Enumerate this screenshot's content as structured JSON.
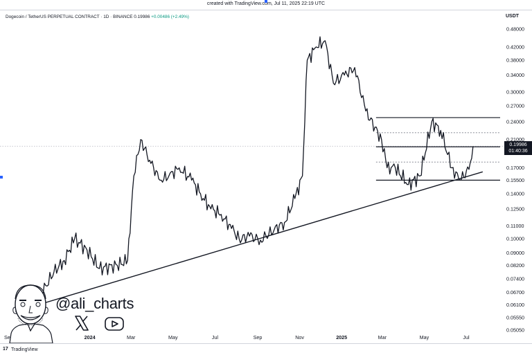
{
  "header": {
    "created": "created with TradingView.com, Jul 11, 2025 22:19 UTC",
    "symbol": "Dogecoin / TetherUS PERPETUAL CONTRACT · 1D · BINANCE",
    "price": "0.19986",
    "change": "+0.00486 (+2.49%)",
    "currency": "USDT"
  },
  "price_tag": {
    "price": "0.19986",
    "countdown": "01:40:36"
  },
  "branding": {
    "handle": "@ali_charts",
    "tv_label": "TradingView",
    "tv_logo": "17"
  },
  "icons": [
    "x-logo-icon",
    "youtube-icon",
    "tradingview-logo-icon",
    "avatar-caricature"
  ],
  "chart_data": {
    "type": "line",
    "title": "Dogecoin / TetherUS PERPETUAL CONTRACT · 1D · BINANCE",
    "xlabel": "",
    "ylabel": "USDT",
    "log_scale": true,
    "grid": false,
    "y_ticks": [
      "0.48000",
      "0.42000",
      "0.38000",
      "0.34000",
      "0.30000",
      "0.27000",
      "0.24000",
      "0.21000",
      "0.19000",
      "0.17000",
      "0.15500",
      "0.14000",
      "0.12500",
      "0.11000",
      "0.10000",
      "0.09000",
      "0.08200",
      "0.07400",
      "0.06700",
      "0.06100",
      "0.05550",
      "0.05050"
    ],
    "x_ticks": [
      "Nov",
      "2024",
      "Mar",
      "May",
      "Jul",
      "Sep",
      "Nov",
      "2025",
      "Mar",
      "May",
      "Jul"
    ],
    "x_ticks_visible": [
      "Sep",
      "ov",
      "2024",
      "Mar",
      "May",
      "Jul",
      "Sep",
      "Nov",
      "2025",
      "Mar",
      "May",
      "Jul"
    ],
    "series": [
      {
        "x": [
          "2023-09-15",
          "2023-10-15",
          "2023-11-10",
          "2023-11-25",
          "2023-12-10",
          "2023-12-28",
          "2024-01-15",
          "2024-02-10",
          "2024-02-25",
          "2024-03-05",
          "2024-03-15",
          "2024-03-28",
          "2024-04-12",
          "2024-04-25",
          "2024-05-10",
          "2024-05-28",
          "2024-06-10",
          "2024-06-25",
          "2024-07-10",
          "2024-07-25",
          "2024-08-05",
          "2024-08-20",
          "2024-09-05",
          "2024-09-25",
          "2024-10-10",
          "2024-10-25",
          "2024-11-05",
          "2024-11-12",
          "2024-11-25",
          "2024-12-08",
          "2024-12-20",
          "2025-01-05",
          "2025-01-20",
          "2025-02-05",
          "2025-02-28",
          "2025-03-08",
          "2025-03-20",
          "2025-04-08",
          "2025-04-25",
          "2025-05-12",
          "2025-05-25",
          "2025-06-10",
          "2025-06-22",
          "2025-07-05",
          "2025-07-11"
        ],
        "values": [
          0.06,
          0.062,
          0.078,
          0.085,
          0.1,
          0.092,
          0.08,
          0.082,
          0.085,
          0.16,
          0.21,
          0.18,
          0.155,
          0.16,
          0.17,
          0.155,
          0.14,
          0.125,
          0.12,
          0.108,
          0.1,
          0.102,
          0.099,
          0.107,
          0.113,
          0.135,
          0.16,
          0.38,
          0.42,
          0.44,
          0.32,
          0.34,
          0.36,
          0.26,
          0.21,
          0.17,
          0.17,
          0.15,
          0.16,
          0.24,
          0.225,
          0.17,
          0.155,
          0.168,
          0.19986
        ]
      }
    ],
    "annotations": {
      "horizontal_lines": [
        0.2475,
        0.199,
        0.155
      ],
      "dotted_lines": [
        0.221,
        0.1775
      ],
      "current_price": 0.19986,
      "trendline": {
        "from": [
          "2023-09-15",
          0.058
        ],
        "to": [
          "2025-07-25",
          0.165
        ]
      }
    }
  }
}
